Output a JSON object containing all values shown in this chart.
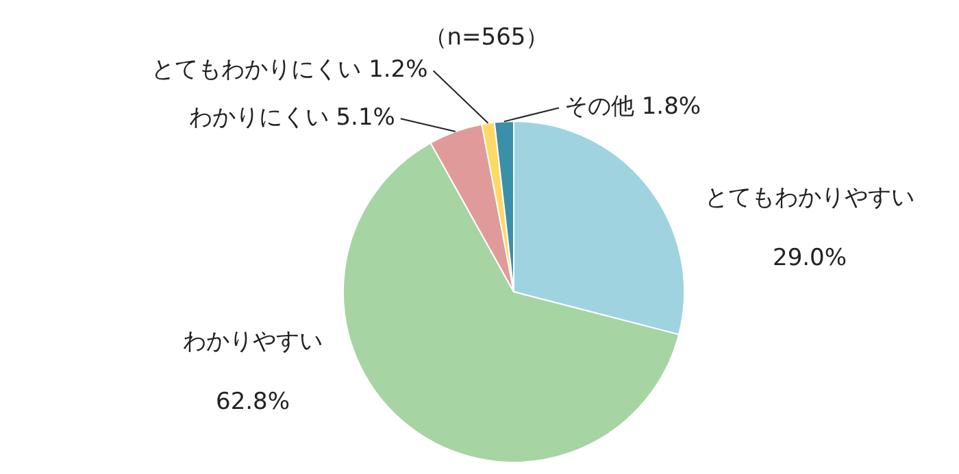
{
  "chart_data": {
    "type": "pie",
    "title": "（n=565）",
    "categories": [
      "とてもわかりやすい",
      "わかりやすい",
      "わかりにくい",
      "とてもわかりにくい",
      "その他"
    ],
    "values": [
      29.0,
      62.8,
      5.1,
      1.2,
      1.8
    ],
    "value_labels": [
      "29.0%",
      "62.8%",
      "5.1%",
      "1.2%",
      "1.8%"
    ],
    "colors": [
      "#9fd3e0",
      "#a6d4a3",
      "#e19a9a",
      "#ffd966",
      "#3a90a8"
    ],
    "legend": false
  }
}
